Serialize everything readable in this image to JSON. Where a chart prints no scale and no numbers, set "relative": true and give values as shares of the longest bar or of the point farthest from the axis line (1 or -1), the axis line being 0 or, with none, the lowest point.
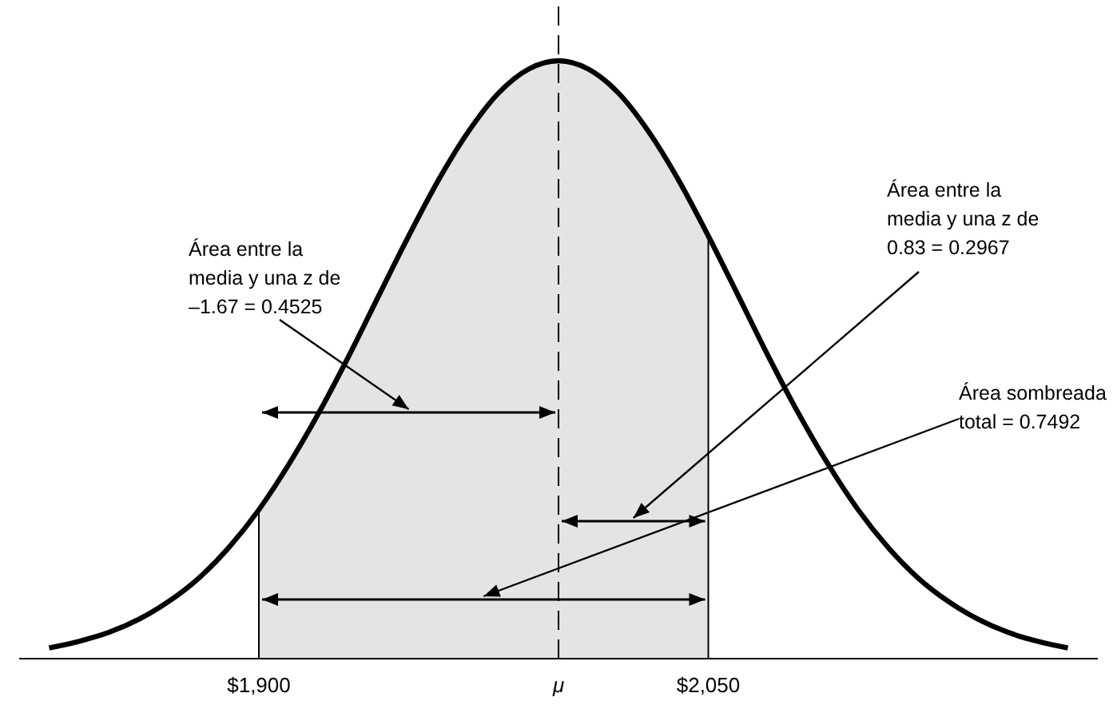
{
  "chart_data": {
    "type": "line",
    "relative": true,
    "x": [
      1830,
      1840,
      1850,
      1860,
      1870,
      1880,
      1890,
      1900,
      1910,
      1920,
      1930,
      1940,
      1950,
      1960,
      1970,
      1980,
      1990,
      2000,
      2010,
      2020,
      2030,
      2040,
      2050,
      2060,
      2070,
      2080,
      2090,
      2100,
      2110,
      2120,
      2130,
      2140,
      2150,
      2160,
      2170
    ],
    "series": [
      {
        "color": "#000000",
        "values": [
          0.018,
          0.029,
          0.044,
          0.066,
          0.096,
          0.135,
          0.186,
          0.249,
          0.325,
          0.411,
          0.506,
          0.607,
          0.707,
          0.801,
          0.882,
          0.946,
          0.986,
          1,
          0.986,
          0.946,
          0.882,
          0.801,
          0.707,
          0.607,
          0.506,
          0.411,
          0.325,
          0.249,
          0.186,
          0.135,
          0.096,
          0.066,
          0.044,
          0.029,
          0.018
        ]
      }
    ],
    "xlim": [
      1820,
      2180
    ],
    "xticks": [
      {
        "value": 1900,
        "label": "$1,900"
      },
      {
        "value": 2000,
        "label": "μ"
      },
      {
        "value": 2050,
        "label": "$2,050"
      }
    ],
    "bands": [
      {
        "axis": "x",
        "from": 1900,
        "to": 2050,
        "color": "#e4e4e4"
      }
    ],
    "ref_lines": [
      {
        "axis": "x",
        "value": 1900,
        "line_style": "solid"
      },
      {
        "axis": "x",
        "value": 2000,
        "line_style": "dashed"
      },
      {
        "axis": "x",
        "value": 2050,
        "line_style": "solid"
      }
    ],
    "annotations": [
      "Área entre la\nmedia y una z de\n–1.67 = 0.4525",
      "Área entre la\nmedia y una z de\n0.83 = 0.2967",
      "Área sombreada\ntotal = 0.7492"
    ]
  }
}
